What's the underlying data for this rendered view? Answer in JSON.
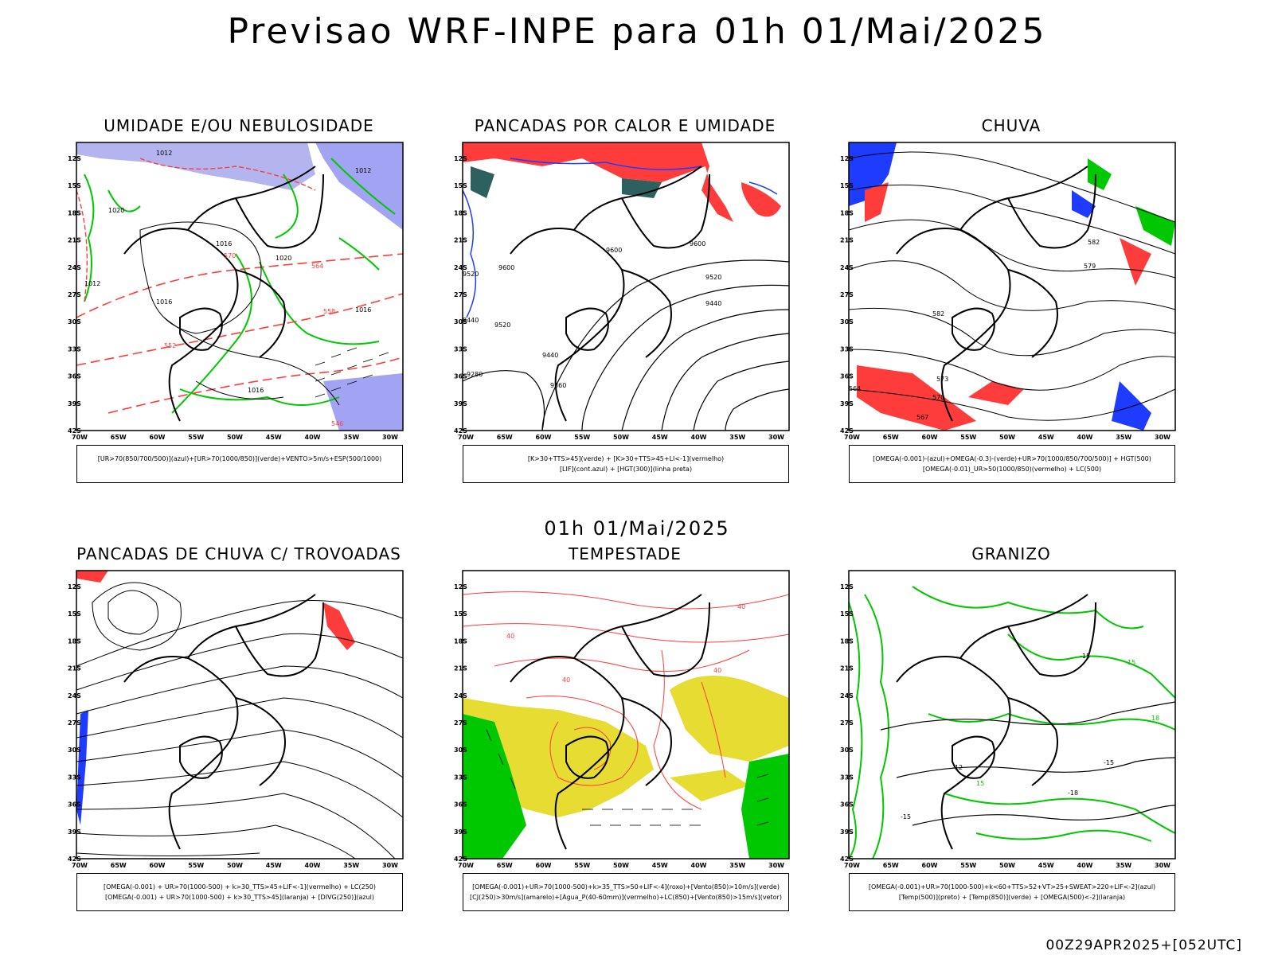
{
  "title": "Previsao WRF-INPE  para 01h 01/Mai/2025",
  "subtitle": "01h 01/Mai/2025",
  "run_stamp": "00Z29APR2025+[052UTC]",
  "axes": {
    "lat_labels": [
      "12S",
      "15S",
      "18S",
      "21S",
      "24S",
      "27S",
      "30S",
      "33S",
      "36S",
      "39S",
      "42S"
    ],
    "lon_labels": [
      "70W",
      "65W",
      "60W",
      "55W",
      "50W",
      "45W",
      "40W",
      "35W",
      "30W"
    ]
  },
  "colors": {
    "humidity_blue": "#8c8cf0",
    "humidity_blue_light": "#b4b4ee",
    "green": "#00c800",
    "red": "#ff3c3c",
    "blue": "#1e3cff",
    "yellow": "#e6dc32",
    "teal": "#2f6060",
    "orange": "#ff8c00"
  },
  "panels": [
    {
      "id": "umidade",
      "title": "UMIDADE E/OU NEBULOSIDADE",
      "legend": [
        "[UR>70(850/700/500)](azul)+[UR>70(1000/850)](verde)+VENTO>5m/s+ESP(500/1000)"
      ],
      "contour_labels": [
        "1012",
        "1012",
        "1016",
        "1020",
        "1016",
        "1012",
        "1016",
        "1016",
        "1020",
        "1016",
        "576",
        "570",
        "564",
        "558",
        "552",
        "546"
      ]
    },
    {
      "id": "pancadas_calor",
      "title": "PANCADAS POR CALOR E UMIDADE",
      "legend": [
        "[K>30+TTS>45](verde) + [K>30+TTS>45+LI<-1](vermelho)",
        "[LIF](cont.azul) + [HGT(300)](linha preta)"
      ],
      "contour_labels": [
        "9600",
        "9520",
        "9440",
        "9360",
        "9280",
        "9520",
        "9600",
        "9520",
        "9440",
        "9440",
        "9360",
        "9600"
      ]
    },
    {
      "id": "chuva",
      "title": "CHUVA",
      "legend": [
        "[OMEGA(-0.001)-(azul)+OMEGA(-0.3)-(verde)+UR>70(1000/850/700/500)] + HGT(500)",
        "[OMEGA(-0.01)_UR>50(1000/850)(vermelho) + LC(500)"
      ],
      "contour_labels": [
        "582",
        "579",
        "576",
        "573",
        "570",
        "567",
        "564"
      ]
    },
    {
      "id": "pancadas_trovoadas",
      "title": "PANCADAS DE CHUVA C/ TROVOADAS",
      "legend": [
        "[OMEGA(-0.001) + UR>70(1000-500) + k>30_TTS>45+LIF<-1](vermelho) + LC(250)",
        "[OMEGA(-0.001) + UR>70(1000-500) + k>30_TTS>45](laranja) + [DIVG(250)](azul)"
      ]
    },
    {
      "id": "tempestade",
      "title": "TEMPESTADE",
      "legend": [
        "[OMEGA(-0.001)+UR>70(1000-500)+k>35_TTS>50+LIF<-4](roxo)+[Vento(850)>10m/s](verde)",
        "[CJ(250)>30m/s](amarelo)+[Agua_P(40-60mm)](vermelho)+LC(850)+[Vento(850)>15m/s](vetor)"
      ],
      "contour_labels": [
        "40",
        "40",
        "40",
        "40"
      ]
    },
    {
      "id": "granizo",
      "title": "GRANIZO",
      "legend": [
        "[OMEGA(-0.001)+UR>70(1000-500)+k<60+TTS>52+VT>25+SWEAT>220+LIF<-2](azul)",
        "[Temp(500)](preto) + [Temp(850)](verde) + [OMEGA(500)<-2](laranja)"
      ],
      "contour_labels": [
        "-15",
        "-12",
        "-15",
        "-18",
        "-15",
        "15",
        "15",
        "18"
      ]
    }
  ]
}
